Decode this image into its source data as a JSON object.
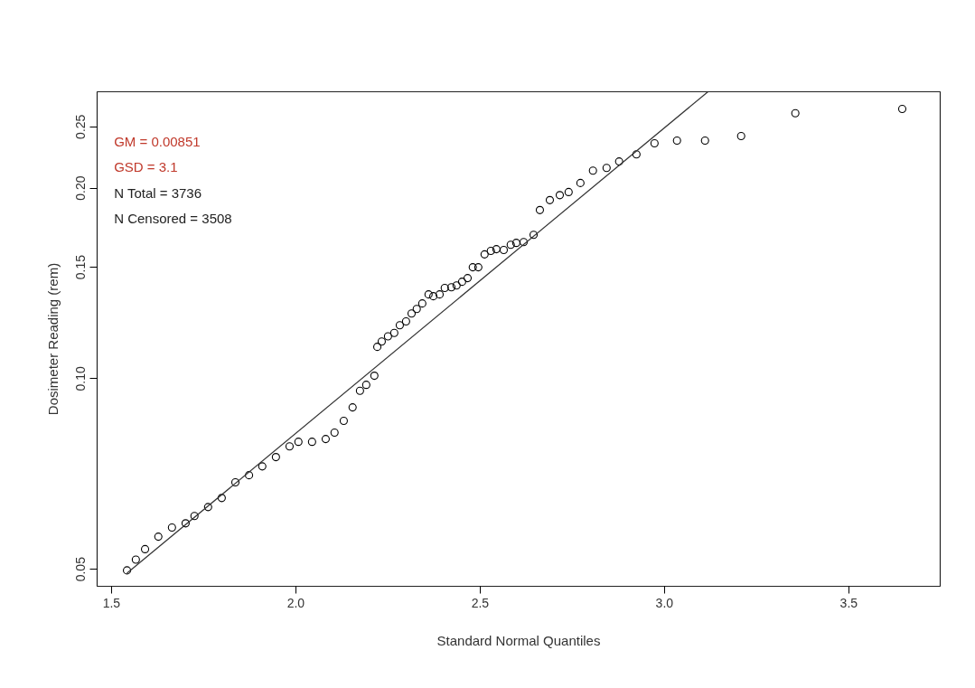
{
  "chart_data": {
    "type": "scatter",
    "xlabel": "Standard Normal Quantiles",
    "ylabel": "Dosimeter Reading (rem)",
    "log": "y",
    "xlim": [
      1.461,
      3.748
    ],
    "ylim": [
      0.047,
      0.284
    ],
    "xticks": [
      1.5,
      {
        "value": 2,
        "label": "2.0"
      },
      2.5,
      {
        "value": 3,
        "label": "3.0"
      },
      3.5
    ],
    "yticks": [
      0.05,
      {
        "value": 0.1,
        "label": "0.10"
      },
      0.15,
      {
        "value": 0.2,
        "label": "0.20"
      },
      0.25
    ],
    "grid": false,
    "annotations": [
      "GM = 0.00851",
      "GSD = 3.1",
      "N Total = 3736",
      "N Censored = 3508"
    ],
    "series": [
      {
        "marker": "circle",
        "color": "#000000",
        "x": [
          1.542,
          1.566,
          1.591,
          1.627,
          1.664,
          1.701,
          1.725,
          1.762,
          1.799,
          1.836,
          1.873,
          1.909,
          1.946,
          1.983,
          2.007,
          2.044,
          2.081,
          2.105,
          2.13,
          2.154,
          2.174,
          2.191,
          2.213,
          2.221,
          2.233,
          2.25,
          2.267,
          2.282,
          2.299,
          2.314,
          2.328,
          2.343,
          2.36,
          2.373,
          2.39,
          2.404,
          2.422,
          2.436,
          2.451,
          2.466,
          2.48,
          2.495,
          2.512,
          2.529,
          2.544,
          2.564,
          2.583,
          2.598,
          2.618,
          2.645,
          2.662,
          2.689,
          2.716,
          2.74,
          2.772,
          2.806,
          2.843,
          2.877,
          2.924,
          2.973,
          3.034,
          3.11,
          3.208,
          3.355,
          3.645
        ],
        "values": [
          0.0498,
          0.0518,
          0.0538,
          0.0563,
          0.0582,
          0.0591,
          0.0607,
          0.0627,
          0.0648,
          0.0686,
          0.0704,
          0.0727,
          0.0752,
          0.0782,
          0.0795,
          0.0795,
          0.0803,
          0.0822,
          0.0858,
          0.0901,
          0.0957,
          0.0978,
          0.1011,
          0.1123,
          0.1145,
          0.1167,
          0.1181,
          0.1215,
          0.1232,
          0.1268,
          0.1289,
          0.1315,
          0.1359,
          0.135,
          0.1359,
          0.1391,
          0.1395,
          0.1404,
          0.1423,
          0.1442,
          0.15,
          0.15,
          0.1572,
          0.1592,
          0.1602,
          0.1597,
          0.1628,
          0.1639,
          0.1644,
          0.1688,
          0.1847,
          0.1915,
          0.195,
          0.1972,
          0.2038,
          0.2132,
          0.2153,
          0.2204,
          0.2262,
          0.2354,
          0.2378,
          0.2378,
          0.2417,
          0.2626,
          0.2668
        ]
      },
      {
        "type": "line",
        "color": "#333333",
        "x": [
          1.542,
          3.118
        ],
        "values": [
          0.0493,
          0.284
        ],
        "line_style": "solid",
        "marker": "none"
      }
    ]
  }
}
